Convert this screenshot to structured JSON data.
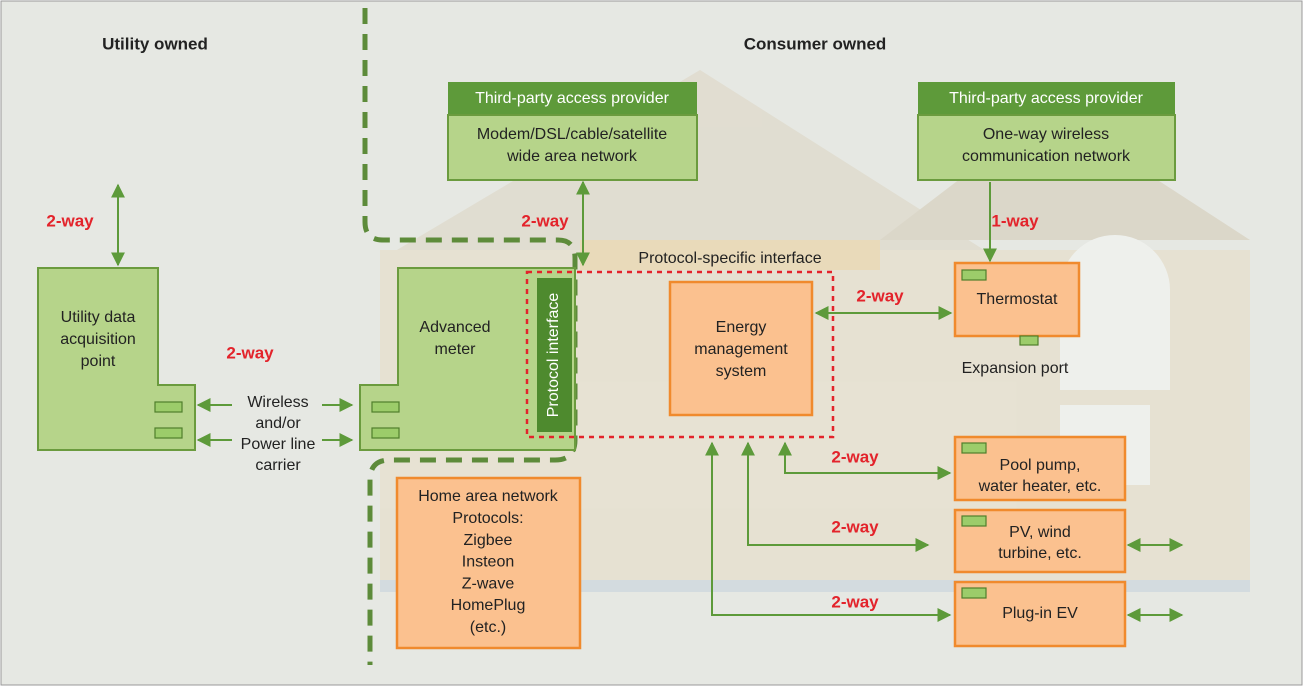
{
  "regions": [
    "Utility owned",
    "Consumer owned"
  ],
  "providers": [
    {
      "title": "Third-party access provider",
      "lines": [
        "Modem/DSL/cable/satellite",
        "wide area network"
      ]
    },
    {
      "title": "Third-party access provider",
      "lines": [
        "One-way wireless",
        "communication network"
      ]
    }
  ],
  "nodes": {
    "utility": [
      "Utility data",
      "acquisition",
      "point"
    ],
    "meter": [
      "Advanced",
      "meter"
    ],
    "protocol_interface": "Protocol interface",
    "interface_label": "Protocol-specific interface",
    "ems": [
      "Energy",
      "management",
      "system"
    ],
    "thermostat": "Thermostat",
    "expansion_port": "Expansion port",
    "pool": [
      "Pool pump,",
      "water heater, etc."
    ],
    "pv": [
      "PV, wind",
      "turbine, etc."
    ],
    "ev": "Plug-in EV",
    "han": [
      "Home area network",
      "Protocols:",
      "Zigbee",
      "Insteon",
      "Z-wave",
      "HomePlug",
      "(etc.)"
    ],
    "carrier": [
      "Wireless",
      "and/or",
      "Power line",
      "carrier"
    ]
  },
  "links": [
    "2-way",
    "2-way",
    "1-way",
    "2-way",
    "2-way",
    "2-way",
    "2-way",
    "2-way"
  ]
}
